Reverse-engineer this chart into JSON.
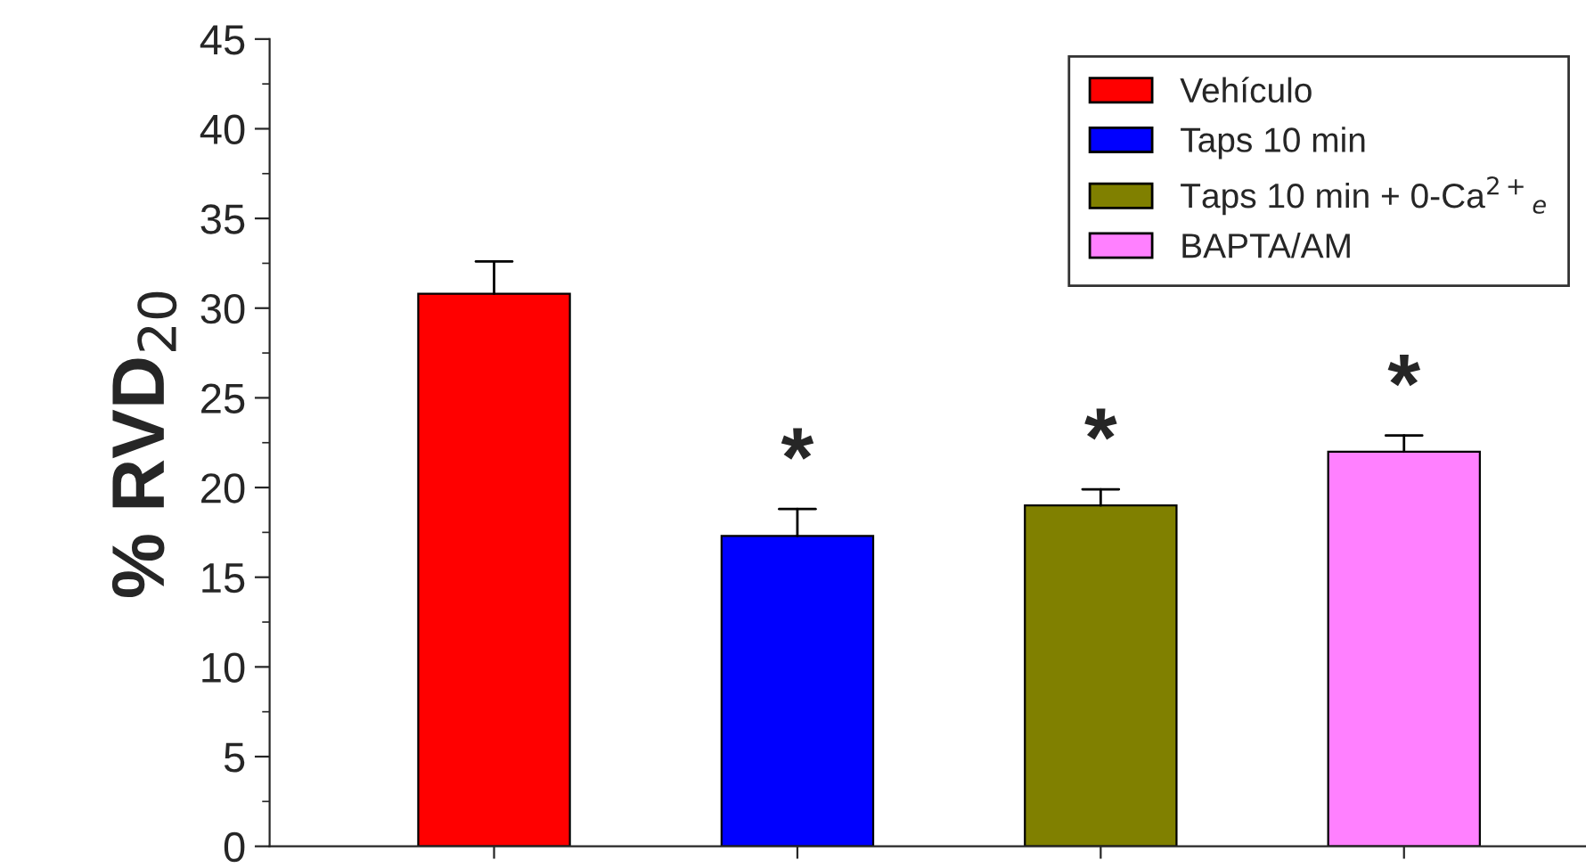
{
  "chart_data": {
    "type": "bar",
    "categories": [
      null,
      null,
      null,
      null
    ],
    "series": [
      {
        "name": "Vehículo",
        "color": "#ff0000",
        "values": [
          30.8,
          null,
          null,
          null
        ],
        "errors": [
          [
            30.8,
            32.6
          ],
          null,
          null,
          null
        ]
      },
      {
        "name": "Taps 10 min",
        "color": "#0000ff",
        "values": [
          null,
          17.3,
          null,
          null
        ],
        "errors": [
          null,
          [
            17.3,
            18.8
          ],
          null,
          null
        ],
        "value_labels": [
          null,
          "*",
          null,
          null
        ]
      },
      {
        "name": "Taps 10 min + 0-Ca$^{2+}$$_{e}$",
        "color": "#808000",
        "values": [
          null,
          null,
          19.0,
          null
        ],
        "errors": [
          null,
          null,
          [
            19.0,
            19.9
          ],
          null
        ],
        "value_labels": [
          null,
          null,
          "*",
          null
        ]
      },
      {
        "name": "BAPTA/AM",
        "color": "#ff80ff",
        "values": [
          null,
          null,
          null,
          22.0
        ],
        "errors": [
          null,
          null,
          null,
          [
            22.0,
            22.9
          ]
        ],
        "value_labels": [
          null,
          null,
          null,
          "*"
        ]
      }
    ],
    "ylabel": "% RVD$_{20}$",
    "ylim": [
      0,
      45
    ],
    "yticks": [
      0,
      5,
      10,
      15,
      20,
      25,
      30,
      35,
      40,
      45
    ],
    "tick_labels": "y",
    "legend": "top right",
    "grid": false
  }
}
